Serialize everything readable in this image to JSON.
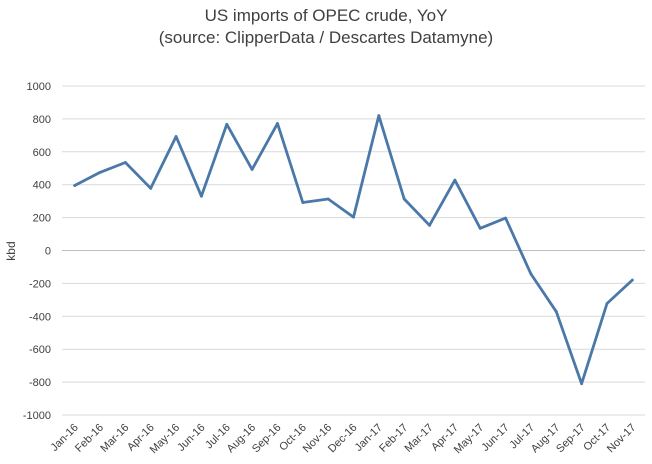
{
  "chart_data": {
    "type": "line",
    "title_lines": [
      "US imports of OPEC crude, YoY",
      "(source: ClipperData / Descartes Datamyne)"
    ],
    "xlabel": "",
    "ylabel": "kbd",
    "ylim": [
      -1000,
      1000
    ],
    "yticks": [
      1000,
      800,
      600,
      400,
      200,
      0,
      -200,
      -400,
      -600,
      -800,
      -1000
    ],
    "ytick_labels": [
      "1000",
      "800",
      "600",
      "400",
      "200",
      "0",
      "-200",
      "-400",
      "-600",
      "-800",
      "-1000"
    ],
    "grid": true,
    "categories": [
      "Jan-16",
      "Feb-16",
      "Mar-16",
      "Apr-16",
      "May-16",
      "Jun-16",
      "Jul-16",
      "Aug-16",
      "Sep-16",
      "Oct-16",
      "Nov-16",
      "Dec-16",
      "Jan-17",
      "Feb-17",
      "Mar-17",
      "Apr-17",
      "May-17",
      "Jun-17",
      "Jul-17",
      "Aug-17",
      "Sep-17",
      "Oct-17",
      "Nov-17"
    ],
    "series": [
      {
        "values": [
          395,
          475,
          535,
          378,
          693,
          330,
          767,
          493,
          772,
          292,
          313,
          203,
          820,
          313,
          153,
          428,
          135,
          197,
          -142,
          -372,
          -810,
          -322,
          -180
        ],
        "color": "#4a78a8"
      }
    ]
  }
}
